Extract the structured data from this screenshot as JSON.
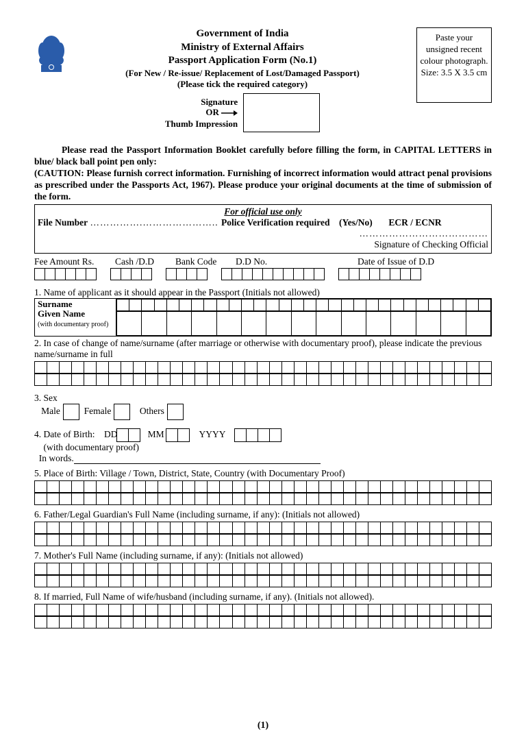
{
  "header": {
    "line1": "Government of India",
    "line2": "Ministry of External Affairs",
    "line3": "Passport Application Form (No.1)",
    "sub1": "(For New / Re-issue/ Replacement of Lost/Damaged Passport)",
    "sub2": "(Please tick the required category)"
  },
  "photo_box": "Paste your unsigned recent colour photograph. Size: 3.5 X 3.5 cm",
  "sig": {
    "signature": "Signature",
    "or": "OR",
    "thumb": "Thumb Impression"
  },
  "instructions": {
    "p1": "Please read the Passport Information Booklet carefully before filling the form, in CAPITAL LETTERS in blue/ black ball point pen only:",
    "p2": "(CAUTION: Please furnish correct information. Furnishing of incorrect information would attract penal provisions as prescribed under the Passports Act, 1967). Please produce your original documents at the time of submission of the form."
  },
  "official": {
    "title": "For official use only",
    "file_label": "File Number",
    "police": "Police Verification required",
    "yesno": "(Yes/No)",
    "ecr": "ECR / ECNR",
    "sig_official": "Signature of Checking Official"
  },
  "fee": {
    "amount": "Fee Amount Rs.",
    "cash": "Cash /D.D",
    "bank": "Bank Code",
    "ddno": "D.D No.",
    "date": "Date  of Issue of D.D",
    "cells": {
      "amount": 6,
      "cash": 4,
      "bank": 4,
      "ddno": 10,
      "date": 8
    }
  },
  "q1": {
    "label": "1. Name of applicant as it should appear in the Passport (Initials not allowed)",
    "surname": "Surname",
    "given": "Given Name",
    "proof": "(with documentary proof)",
    "cols": 30,
    "given_cols": 15
  },
  "q2": {
    "label": "2. In case of change of name/surname (after marriage or otherwise with documentary proof), please indicate the previous name/surname in full",
    "cols": 37
  },
  "q3": {
    "label_num": "3. Sex",
    "male": "Male",
    "female": "Female",
    "others": "Others"
  },
  "q4": {
    "label": "4. Date of Birth:",
    "dd": "DD",
    "mm": "MM",
    "yyyy": "YYYY",
    "proof": "(with documentary proof)",
    "words": "In words."
  },
  "q5": {
    "label": "5. Place of Birth: Village / Town, District, State, Country (with Documentary Proof)",
    "cols": 37
  },
  "q6": {
    "label": "6. Father/Legal Guardian's Full Name (including surname, if any): (Initials not allowed)",
    "cols": 37
  },
  "q7": {
    "label": "7. Mother's Full Name (including surname, if any): (Initials not allowed)",
    "cols": 37
  },
  "q8": {
    "label": "8. If married, Full Name of wife/husband (including surname, if any). (Initials not allowed).",
    "cols": 37
  },
  "page_num": "(1)",
  "colors": {
    "text": "#000000",
    "bg": "#ffffff",
    "emblem": "#2a5caa"
  }
}
